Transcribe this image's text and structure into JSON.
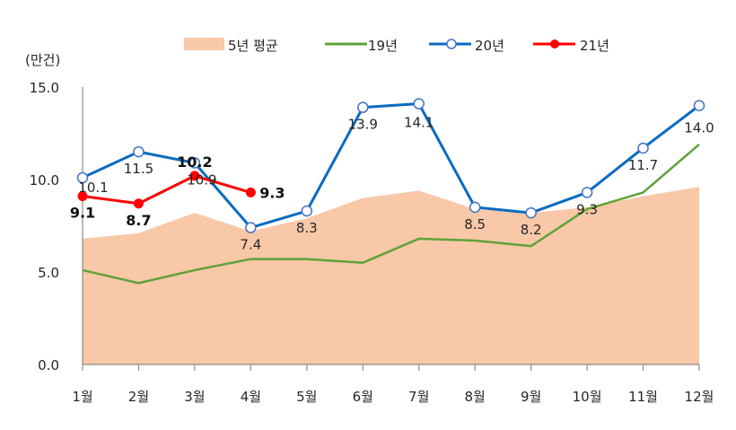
{
  "chart_data": {
    "type": "line",
    "title": "",
    "unit_label": "(만건)",
    "xlabel": "",
    "ylabel": "(만건)",
    "ylim": [
      0,
      15
    ],
    "yticks": [
      "0.0",
      "5.0",
      "10.0",
      "15.0"
    ],
    "ytick_values": [
      0,
      5,
      10,
      15
    ],
    "categories": [
      "1월",
      "2월",
      "3월",
      "4월",
      "5월",
      "6월",
      "7월",
      "8월",
      "9월",
      "10월",
      "11월",
      "12월"
    ],
    "grid": false,
    "legend_position": "top",
    "series": [
      {
        "name": "5년 평균",
        "kind": "area",
        "color": "#F8C8A8",
        "values": [
          6.8,
          7.1,
          8.2,
          7.2,
          7.9,
          9.0,
          9.4,
          8.4,
          8.2,
          8.5,
          9.1,
          9.6
        ],
        "labels": []
      },
      {
        "name": "19년",
        "kind": "line",
        "color": "#5FA33A",
        "values": [
          5.1,
          4.4,
          5.1,
          5.7,
          5.7,
          5.5,
          6.8,
          6.7,
          6.4,
          8.4,
          9.3,
          11.9
        ],
        "labels": []
      },
      {
        "name": "20년",
        "kind": "line-marker-hollow",
        "color": "#0A6BC2",
        "values": [
          10.1,
          11.5,
          10.9,
          7.4,
          8.3,
          13.9,
          14.1,
          8.5,
          8.2,
          9.3,
          11.7,
          14.0
        ],
        "labels": [
          "10.1",
          "11.5",
          "10.9",
          "7.4",
          "8.3",
          "13.9",
          "14.1",
          "8.5",
          "8.2",
          "9.3",
          "11.7",
          "14.0"
        ]
      },
      {
        "name": "21년",
        "kind": "line-marker-filled",
        "color": "#FF0000",
        "values": [
          9.1,
          8.7,
          10.2,
          9.3
        ],
        "labels": [
          "9.1",
          "8.7",
          "10.2",
          "9.3"
        ]
      }
    ]
  },
  "legend": {
    "items": [
      {
        "label": "5년 평균"
      },
      {
        "label": "19년"
      },
      {
        "label": "20년"
      },
      {
        "label": "21년"
      }
    ]
  }
}
